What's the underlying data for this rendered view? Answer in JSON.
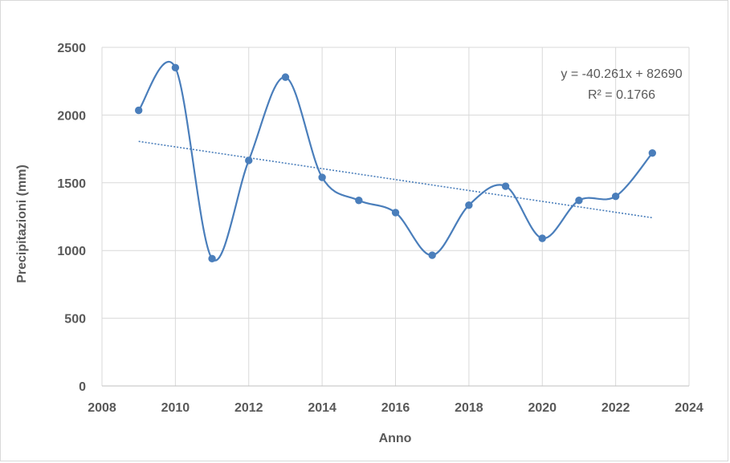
{
  "chart_data": {
    "type": "line",
    "title": "",
    "xlabel": "Anno",
    "ylabel": "Precipitazioni (mm)",
    "xlim": [
      2008,
      2024
    ],
    "ylim": [
      0,
      2500
    ],
    "x_ticks": [
      "2008",
      "2010",
      "2012",
      "2014",
      "2016",
      "2018",
      "2020",
      "2022",
      "2024"
    ],
    "y_ticks": [
      "0",
      "500",
      "1000",
      "1500",
      "2000",
      "2500"
    ],
    "grid": true,
    "legend": false,
    "line_color": "#4a7ebb",
    "trend_color": "#4a7ebb",
    "series": [
      {
        "smooth": true,
        "x": [
          2009,
          2010,
          2011,
          2012,
          2013,
          2014,
          2015,
          2016,
          2017,
          2018,
          2019,
          2020,
          2021,
          2022,
          2023
        ],
        "y": [
          2035,
          2350,
          940,
          1665,
          2280,
          1540,
          1370,
          1280,
          965,
          1335,
          1475,
          1090,
          1370,
          1400,
          1720
        ]
      }
    ],
    "trendline": {
      "type": "linear",
      "slope": -40.261,
      "intercept": 82690,
      "x_range": [
        2009,
        2023
      ],
      "equation_label": "y = -40.261x + 82690",
      "r2_label": "R² = 0.1766"
    }
  }
}
